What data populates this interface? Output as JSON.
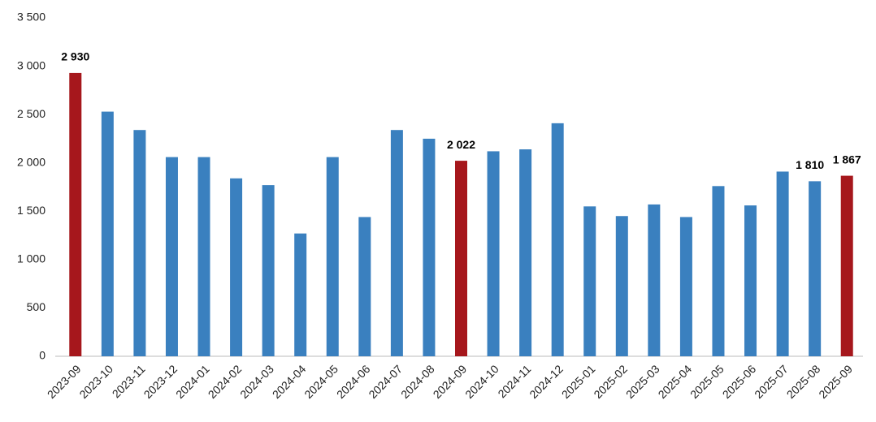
{
  "chart_data": {
    "type": "bar",
    "categories": [
      "2023-09",
      "2023-10",
      "2023-11",
      "2023-12",
      "2024-01",
      "2024-02",
      "2024-03",
      "2024-04",
      "2024-05",
      "2024-06",
      "2024-07",
      "2024-08",
      "2024-09",
      "2024-10",
      "2024-11",
      "2024-12",
      "2025-01",
      "2025-02",
      "2025-03",
      "2025-04",
      "2025-05",
      "2025-06",
      "2025-07",
      "2025-08",
      "2025-09"
    ],
    "values": [
      2930,
      2530,
      2340,
      2060,
      2060,
      1840,
      1770,
      1270,
      2060,
      1440,
      2340,
      2250,
      2022,
      2120,
      2140,
      2410,
      1550,
      1450,
      1570,
      1440,
      1760,
      1560,
      1910,
      1810,
      1867
    ],
    "value_labels": [
      "2 930",
      null,
      null,
      null,
      null,
      null,
      null,
      null,
      null,
      null,
      null,
      null,
      "2 022",
      null,
      null,
      null,
      null,
      null,
      null,
      null,
      null,
      null,
      null,
      "1 810",
      "1 867"
    ],
    "colors": [
      "#a6171c",
      "#3a80bf",
      "#3a80bf",
      "#3a80bf",
      "#3a80bf",
      "#3a80bf",
      "#3a80bf",
      "#3a80bf",
      "#3a80bf",
      "#3a80bf",
      "#3a80bf",
      "#3a80bf",
      "#a6171c",
      "#3a80bf",
      "#3a80bf",
      "#3a80bf",
      "#3a80bf",
      "#3a80bf",
      "#3a80bf",
      "#3a80bf",
      "#3a80bf",
      "#3a80bf",
      "#3a80bf",
      "#3a80bf",
      "#a6171c"
    ],
    "ylim": [
      0,
      3500
    ],
    "yticks": [
      0,
      500,
      {
        "value": 1000,
        "label": "1 000"
      },
      {
        "value": 1500,
        "label": "1 500"
      },
      {
        "value": 2000,
        "label": "2 000"
      },
      {
        "value": 2500,
        "label": "2 500"
      },
      {
        "value": 3000,
        "label": "3 000"
      },
      {
        "value": 3500,
        "label": "3 500"
      }
    ],
    "grid": false
  }
}
